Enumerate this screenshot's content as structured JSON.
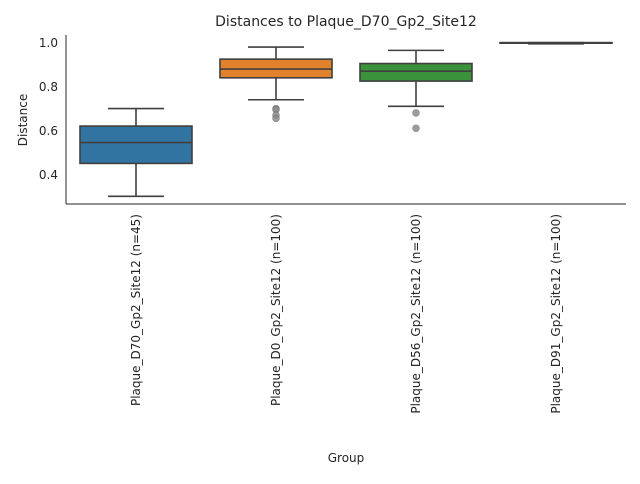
{
  "chart_data": {
    "type": "box",
    "title": "Distances to Plaque_D70_Gp2_Site12",
    "xlabel": "Group",
    "ylabel": "Distance",
    "ylim": [
      0.265,
      1.035
    ],
    "yticks": [
      "0.4",
      "0.6",
      "0.8",
      "1.0"
    ],
    "grid": false,
    "categories": [
      "Plaque_D70_Gp2_Site12 (n=45)",
      "Plaque_D0_Gp2_Site12 (n=100)",
      "Plaque_D56_Gp2_Site12 (n=100)",
      "Plaque_D91_Gp2_Site12 (n=100)"
    ],
    "boxes": [
      {
        "whisker_low": 0.3,
        "q1": 0.45,
        "median": 0.545,
        "q3": 0.62,
        "whisker_high": 0.7,
        "outliers": [],
        "color": "#3274a1"
      },
      {
        "whisker_low": 0.74,
        "q1": 0.84,
        "median": 0.88,
        "q3": 0.925,
        "whisker_high": 0.98,
        "outliers": [
          0.7,
          0.695,
          0.67,
          0.655
        ],
        "color": "#e1812c"
      },
      {
        "whisker_low": 0.71,
        "q1": 0.825,
        "median": 0.87,
        "q3": 0.905,
        "whisker_high": 0.965,
        "outliers": [
          0.68,
          0.61
        ],
        "color": "#3a923a"
      },
      {
        "whisker_low": 0.995,
        "q1": 0.999,
        "median": 1.0,
        "q3": 1.0,
        "whisker_high": 1.0,
        "outliers": [],
        "color": "#c03d3e"
      }
    ],
    "line_color": "#3f3f3f",
    "outlier_color": "#8c8c8c"
  }
}
